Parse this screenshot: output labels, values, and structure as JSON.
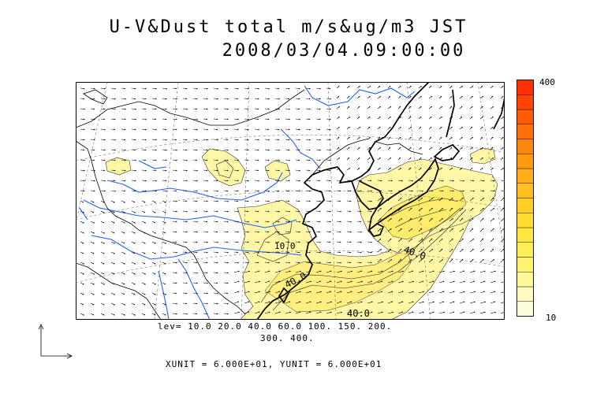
{
  "title_line1": "U-V&Dust total m/s&ug/m3 JST",
  "title_line2": "2008/03/04.09:00:00",
  "levels_line1": "lev= 10.0 20.0 40.0 60.0 100. 150. 200.",
  "levels_line2": "300. 400.",
  "unit_line": "XUNIT = 6.000E+01, YUNIT = 6.000E+01",
  "colorbar": {
    "max_label": "400",
    "min_label": "10",
    "colors": [
      "#fffde0",
      "#fffac0",
      "#fff79a",
      "#fff370",
      "#ffee55",
      "#ffe640",
      "#ffdc30",
      "#ffcf28",
      "#ffbf20",
      "#ffae18",
      "#ff9a12",
      "#ff860e",
      "#ff700a",
      "#ff5a06",
      "#ff4404",
      "#ff3000"
    ]
  },
  "contour_labels": [
    "40.0",
    "40.0",
    "40.0",
    "10.0"
  ],
  "colors": {
    "coast": "#000000",
    "river": "#2060ff",
    "dust": "#fff6a0",
    "grid": "#555555"
  }
}
